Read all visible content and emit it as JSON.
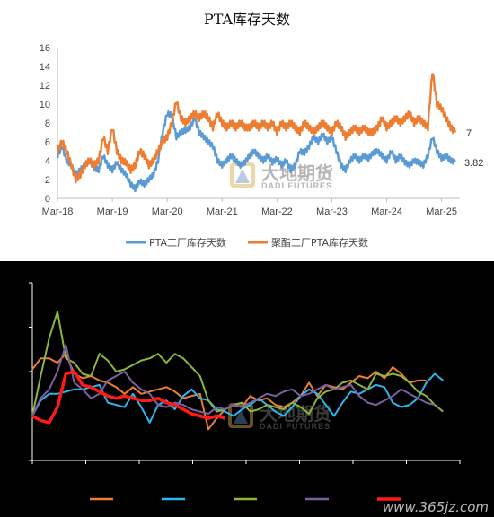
{
  "top_chart": {
    "title": "PTA库存天数",
    "watermark_cn": "大地期货",
    "watermark_en": "DADI FUTURES",
    "end_label_orange": "7",
    "end_label_blue": "3.82"
  },
  "bottom_chart": {
    "watermark_cn": "大地期货",
    "watermark_en": "DADI FUTURES",
    "website": "www.365jz.com"
  },
  "colors": {
    "blue": "#5b9bd5",
    "orange": "#ed7d31",
    "cyan": "#2eb6ee",
    "green": "#8db53c",
    "purple": "#7e5ea3",
    "red": "#ff1a1a"
  },
  "chart_data": [
    {
      "type": "line",
      "title": "PTA库存天数",
      "x_tick_labels": [
        "Mar-18",
        "Mar-19",
        "Mar-20",
        "Mar-21",
        "Mar-22",
        "Mar-23",
        "Mar-24",
        "Mar-25"
      ],
      "ylim": [
        0,
        16
      ],
      "y_ticks": [
        0,
        2,
        4,
        6,
        8,
        10,
        12,
        14,
        16
      ],
      "grid": false,
      "legend_position": "bottom",
      "series": [
        {
          "name": "PTA工厂库存天数",
          "color": "#5b9bd5",
          "points": [
            [
              "2018-03",
              4.5
            ],
            [
              "2018-04",
              5.5
            ],
            [
              "2018-05",
              4.0
            ],
            [
              "2018-06",
              3.5
            ],
            [
              "2018-07",
              2.5
            ],
            [
              "2018-08",
              3.0
            ],
            [
              "2018-09",
              3.5
            ],
            [
              "2018-10",
              4.0
            ],
            [
              "2018-11",
              3.2
            ],
            [
              "2018-12",
              3.0
            ],
            [
              "2019-01",
              4.5
            ],
            [
              "2019-02",
              3.5
            ],
            [
              "2019-03",
              3.0
            ],
            [
              "2019-04",
              3.8
            ],
            [
              "2019-05",
              3.0
            ],
            [
              "2019-06",
              2.5
            ],
            [
              "2019-07",
              1.5
            ],
            [
              "2019-08",
              1.0
            ],
            [
              "2019-09",
              1.8
            ],
            [
              "2019-10",
              1.5
            ],
            [
              "2019-11",
              2.0
            ],
            [
              "2019-12",
              2.5
            ],
            [
              "2020-01",
              4.0
            ],
            [
              "2020-02",
              7.0
            ],
            [
              "2020-03",
              9.0
            ],
            [
              "2020-04",
              8.8
            ],
            [
              "2020-05",
              6.5
            ],
            [
              "2020-06",
              7.0
            ],
            [
              "2020-07",
              7.2
            ],
            [
              "2020-08",
              7.5
            ],
            [
              "2020-09",
              8.5
            ],
            [
              "2020-10",
              7.0
            ],
            [
              "2020-11",
              6.5
            ],
            [
              "2020-12",
              6.0
            ],
            [
              "2021-01",
              5.5
            ],
            [
              "2021-02",
              4.0
            ],
            [
              "2021-03",
              3.5
            ],
            [
              "2021-04",
              4.0
            ],
            [
              "2021-05",
              4.5
            ],
            [
              "2021-06",
              4.0
            ],
            [
              "2021-07",
              3.5
            ],
            [
              "2021-08",
              3.8
            ],
            [
              "2021-09",
              4.5
            ],
            [
              "2021-10",
              5.0
            ],
            [
              "2021-11",
              4.5
            ],
            [
              "2021-12",
              4.0
            ],
            [
              "2022-01",
              4.5
            ],
            [
              "2022-02",
              3.8
            ],
            [
              "2022-03",
              4.2
            ],
            [
              "2022-04",
              3.5
            ],
            [
              "2022-05",
              4.0
            ],
            [
              "2022-06",
              3.0
            ],
            [
              "2022-07",
              3.5
            ],
            [
              "2022-08",
              5.0
            ],
            [
              "2022-09",
              4.8
            ],
            [
              "2022-10",
              5.5
            ],
            [
              "2022-11",
              6.5
            ],
            [
              "2022-12",
              6.0
            ],
            [
              "2023-01",
              6.8
            ],
            [
              "2023-02",
              6.0
            ],
            [
              "2023-03",
              6.5
            ],
            [
              "2023-04",
              5.0
            ],
            [
              "2023-05",
              3.5
            ],
            [
              "2023-06",
              3.0
            ],
            [
              "2023-07",
              4.0
            ],
            [
              "2023-08",
              4.5
            ],
            [
              "2023-09",
              4.0
            ],
            [
              "2023-10",
              4.5
            ],
            [
              "2023-11",
              4.2
            ],
            [
              "2023-12",
              4.8
            ],
            [
              "2024-01",
              5.0
            ],
            [
              "2024-02",
              4.5
            ],
            [
              "2024-03",
              4.0
            ],
            [
              "2024-04",
              5.0
            ],
            [
              "2024-05",
              4.0
            ],
            [
              "2024-06",
              4.5
            ],
            [
              "2024-07",
              3.8
            ],
            [
              "2024-08",
              3.5
            ],
            [
              "2024-09",
              4.0
            ],
            [
              "2024-10",
              3.8
            ],
            [
              "2024-11",
              3.5
            ],
            [
              "2024-12",
              4.5
            ],
            [
              "2025-01",
              6.5
            ],
            [
              "2025-02",
              5.0
            ],
            [
              "2025-03",
              4.2
            ],
            [
              "2025-04",
              4.5
            ],
            [
              "2025-05",
              4.0
            ],
            [
              "2025-06",
              3.82
            ]
          ]
        },
        {
          "name": "聚酯工厂PTA库存天数",
          "color": "#ed7d31",
          "points": [
            [
              "2018-03",
              5.0
            ],
            [
              "2018-04",
              6.0
            ],
            [
              "2018-05",
              5.0
            ],
            [
              "2018-06",
              3.5
            ],
            [
              "2018-07",
              2.0
            ],
            [
              "2018-08",
              2.5
            ],
            [
              "2018-09",
              3.5
            ],
            [
              "2018-10",
              4.0
            ],
            [
              "2018-11",
              3.5
            ],
            [
              "2018-12",
              4.0
            ],
            [
              "2019-01",
              6.5
            ],
            [
              "2019-02",
              5.0
            ],
            [
              "2019-03",
              7.5
            ],
            [
              "2019-04",
              5.0
            ],
            [
              "2019-05",
              4.0
            ],
            [
              "2019-06",
              3.8
            ],
            [
              "2019-07",
              3.0
            ],
            [
              "2019-08",
              3.5
            ],
            [
              "2019-09",
              5.0
            ],
            [
              "2019-10",
              4.5
            ],
            [
              "2019-11",
              3.5
            ],
            [
              "2019-12",
              4.0
            ],
            [
              "2020-01",
              5.0
            ],
            [
              "2020-02",
              6.0
            ],
            [
              "2020-03",
              6.5
            ],
            [
              "2020-04",
              8.0
            ],
            [
              "2020-05",
              10.3
            ],
            [
              "2020-06",
              8.5
            ],
            [
              "2020-07",
              8.0
            ],
            [
              "2020-08",
              8.5
            ],
            [
              "2020-09",
              9.0
            ],
            [
              "2020-10",
              8.5
            ],
            [
              "2020-11",
              9.0
            ],
            [
              "2020-12",
              8.5
            ],
            [
              "2021-01",
              7.5
            ],
            [
              "2021-02",
              9.0
            ],
            [
              "2021-03",
              8.0
            ],
            [
              "2021-04",
              7.5
            ],
            [
              "2021-05",
              8.0
            ],
            [
              "2021-06",
              7.5
            ],
            [
              "2021-07",
              8.0
            ],
            [
              "2021-08",
              7.5
            ],
            [
              "2021-09",
              7.5
            ],
            [
              "2021-10",
              8.0
            ],
            [
              "2021-11",
              7.5
            ],
            [
              "2021-12",
              8.0
            ],
            [
              "2022-01",
              7.5
            ],
            [
              "2022-02",
              8.0
            ],
            [
              "2022-03",
              7.0
            ],
            [
              "2022-04",
              8.0
            ],
            [
              "2022-05",
              7.5
            ],
            [
              "2022-06",
              8.0
            ],
            [
              "2022-07",
              7.5
            ],
            [
              "2022-08",
              7.0
            ],
            [
              "2022-09",
              8.0
            ],
            [
              "2022-10",
              7.5
            ],
            [
              "2022-11",
              7.0
            ],
            [
              "2022-12",
              7.5
            ],
            [
              "2023-01",
              8.0
            ],
            [
              "2023-02",
              7.5
            ],
            [
              "2023-03",
              7.0
            ],
            [
              "2023-04",
              8.0
            ],
            [
              "2023-05",
              7.5
            ],
            [
              "2023-06",
              6.5
            ],
            [
              "2023-07",
              7.0
            ],
            [
              "2023-08",
              7.5
            ],
            [
              "2023-09",
              7.0
            ],
            [
              "2023-10",
              7.5
            ],
            [
              "2023-11",
              7.0
            ],
            [
              "2023-12",
              7.0
            ],
            [
              "2024-01",
              7.5
            ],
            [
              "2024-02",
              8.5
            ],
            [
              "2024-03",
              7.5
            ],
            [
              "2024-04",
              8.0
            ],
            [
              "2024-05",
              8.5
            ],
            [
              "2024-06",
              8.0
            ],
            [
              "2024-07",
              8.5
            ],
            [
              "2024-08",
              9.0
            ],
            [
              "2024-09",
              8.0
            ],
            [
              "2024-10",
              8.5
            ],
            [
              "2024-11",
              8.0
            ],
            [
              "2024-12",
              7.5
            ],
            [
              "2025-01",
              13.5
            ],
            [
              "2025-02",
              10.0
            ],
            [
              "2025-03",
              9.5
            ],
            [
              "2025-04",
              8.5
            ],
            [
              "2025-05",
              7.5
            ],
            [
              "2025-06",
              7.0
            ]
          ]
        }
      ]
    },
    {
      "type": "line",
      "title": "",
      "x_tick_labels": [],
      "y_tick_labels": [],
      "grid": false,
      "legend_position": "bottom",
      "series": [
        {
          "name": "",
          "color": "#ed7d31",
          "values": [
            2.1,
            2.6,
            2.6,
            2.4,
            2.8,
            1.9,
            1.7,
            1.8,
            1.6,
            1.5,
            1.3,
            1.0,
            1.3,
            1.0,
            1.1,
            1.2,
            1.3,
            1.1,
            0.8,
            0.9,
            1.0,
            -0.6,
            -0.1,
            0.3,
            0.5,
            0.4,
            0.9,
            0.7,
            0.8,
            0.5,
            0.4,
            0.6,
            0.9,
            1.5,
            0.9,
            1.4,
            1.3,
            1.2,
            1.5,
            1.8,
            1.7,
            2.0,
            1.7,
            2.2,
            1.9,
            1.5,
            1.6,
            1.6
          ]
        },
        {
          "name": "",
          "color": "#2eb6ee",
          "values": [
            0.0,
            0.7,
            1.0,
            1.0,
            1.1,
            1.2,
            1.2,
            1.3,
            1.4,
            0.6,
            0.5,
            0.4,
            1.0,
            0.4,
            -0.3,
            0.5,
            0.7,
            0.3,
            0.9,
            1.2,
            0.8,
            0.7,
            0.3,
            0.2,
            0.0,
            0.3,
            0.5,
            0.8,
            0.5,
            0.2,
            0.0,
            0.4,
            0.9,
            1.2,
            1.0,
            0.5,
            0.0,
            0.6,
            1.1,
            1.0,
            1.2,
            1.4,
            1.3,
            0.6,
            0.4,
            0.5,
            0.8,
            1.5,
            1.9,
            1.6
          ]
        },
        {
          "name": "",
          "color": "#8db53c",
          "values": [
            0.0,
            1.8,
            3.5,
            4.7,
            2.6,
            2.4,
            1.9,
            1.8,
            2.8,
            2.5,
            2.0,
            2.1,
            2.3,
            2.5,
            2.6,
            2.8,
            2.4,
            2.8,
            2.6,
            2.2,
            1.8,
            0.7,
            0.2,
            0.3,
            0.5,
            0.6,
            0.2,
            0.3,
            0.5,
            0.4,
            0.3,
            0.6,
            0.4,
            0.1,
            0.8,
            1.1,
            1.2,
            1.5,
            1.6,
            1.4,
            1.2,
            1.9,
            1.8,
            1.9,
            1.8,
            1.5,
            1.1,
            0.9,
            0.5,
            0.2
          ]
        },
        {
          "name": "",
          "color": "#7e5ea3",
          "values": [
            0.0,
            0.8,
            1.2,
            2.0,
            3.2,
            1.5,
            1.2,
            0.8,
            1.0,
            1.6,
            1.8,
            2.0,
            1.5,
            1.2,
            1.0,
            0.5,
            0.4,
            0.6,
            0.5,
            0.3,
            0.2,
            0.1,
            0.4,
            0.3,
            0.5,
            0.4,
            0.6,
            0.8,
            1.0,
            0.9,
            1.1,
            1.2,
            0.9,
            1.0,
            1.2,
            1.4,
            1.2,
            1.3,
            1.4,
            0.9,
            0.6,
            0.5,
            0.7,
            0.9,
            1.2,
            1.0,
            0.8,
            0.6,
            0.5
          ]
        },
        {
          "name": "",
          "color": "#ff1a1a",
          "values": [
            0.0,
            -0.2,
            -0.3,
            0.4,
            1.9,
            2.0,
            1.4,
            1.3,
            1.1,
            0.9,
            0.8,
            0.9,
            0.8,
            0.7,
            0.7,
            0.8,
            0.6,
            0.5,
            0.3,
            0.1,
            0.0,
            -0.1,
            0.0,
            -0.1
          ]
        }
      ]
    }
  ]
}
